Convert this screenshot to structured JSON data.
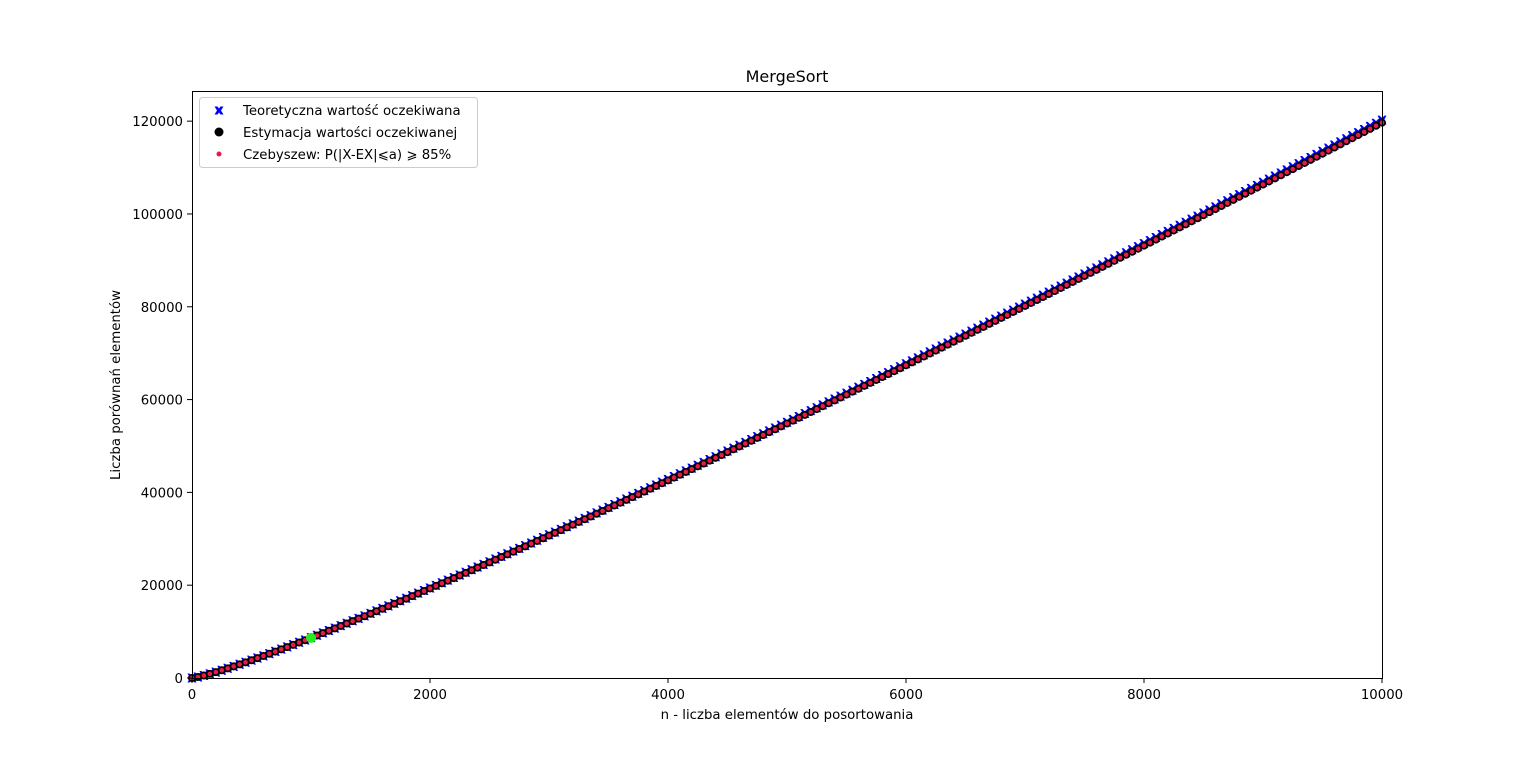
{
  "chart_data": {
    "type": "scatter",
    "title": "MergeSort",
    "xlabel": "n - liczba elementów do posortowania",
    "ylabel": "Liczba porównań elementów",
    "xlim": [
      0,
      10000
    ],
    "ylim": [
      0,
      126500
    ],
    "xticks": [
      0,
      2000,
      4000,
      6000,
      8000,
      10000
    ],
    "yticks": [
      0,
      20000,
      40000,
      60000,
      80000,
      100000,
      120000
    ],
    "x_start": 0,
    "x_end": 10000,
    "x_step": 50,
    "series": [
      {
        "name": "Teoretyczna wartość oczekiwana",
        "marker": "x-filled",
        "color": "#0000ff",
        "formula": "n*log2(n) - 1.2645*n",
        "description": "theoretical expected comparisons at n = 0..10000 step 50; e.g. n=1000 ≈ 8700, n=5000 ≈ 55100, n=10000 ≈ 120200"
      },
      {
        "name": "Estymacja wartości oczekiwanej",
        "marker": "circle",
        "color": "#000000",
        "formula": "n*log2(n) - 1.32*n",
        "description": "estimated expected comparisons at n = 0..10000 step 50; e.g. n=10000 ≈ 119700"
      },
      {
        "name": "Czebyszew: P(|X-EX|⩽a) ⩾ 85%",
        "marker": "small-circle",
        "color": "#e8194b",
        "formula": "n*log2(n) - 1.32*n",
        "description": "Chebyshev bound points at n = 0..10000 step 50"
      }
    ],
    "highlight_point": {
      "x": 1000,
      "y": 8650,
      "color": "#22ee22"
    },
    "legend_position": "upper-left",
    "grid": false
  }
}
